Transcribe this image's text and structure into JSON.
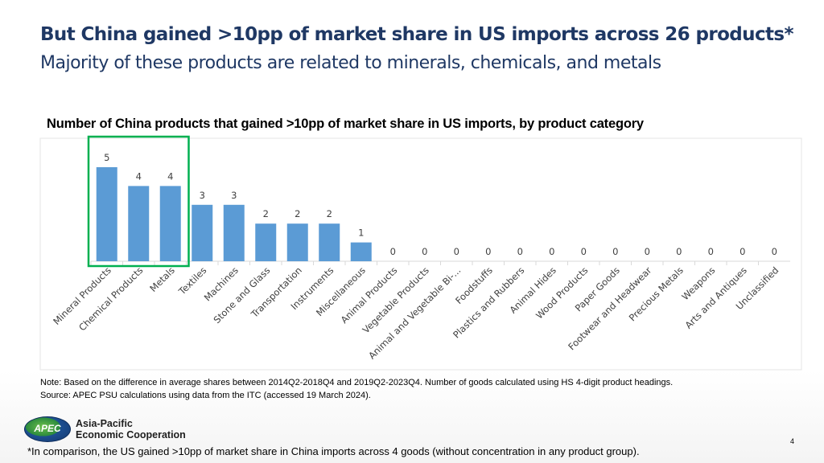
{
  "title": "But China gained >10pp of market share in US imports across 26 products*",
  "subtitle": "Majority of these products are related to minerals, chemicals, and metals",
  "chart_data": {
    "type": "bar",
    "title": "Number of China products that gained >10pp of market share in US imports, by product category",
    "categories": [
      "Mineral Products",
      "Chemical Products",
      "Metals",
      "Textiles",
      "Machines",
      "Stone and Glass",
      "Transportation",
      "Instruments",
      "Miscellaneous",
      "Animal Products",
      "Vegetable Products",
      "Animal and Vegetable Bi-...",
      "Foodstuffs",
      "Plastics and Rubbers",
      "Animal Hides",
      "Wood Products",
      "Paper Goods",
      "Footwear and Headwear",
      "Precious Metals",
      "Weapons",
      "Arts and Antiques",
      "Unclassified"
    ],
    "values": [
      5,
      4,
      4,
      3,
      3,
      2,
      2,
      2,
      1,
      0,
      0,
      0,
      0,
      0,
      0,
      0,
      0,
      0,
      0,
      0,
      0,
      0
    ],
    "data_labels": [
      "5",
      "4",
      "4",
      "3",
      "3",
      "2",
      "2",
      "2",
      "1",
      "0",
      "0",
      "0",
      "0",
      "0",
      "0",
      "0",
      "0",
      "0",
      "0",
      "0",
      "0",
      "0"
    ],
    "ylim": [
      0,
      5
    ],
    "grid": false,
    "bar_color": "#5b9bd5",
    "highlight_color": "#00b050",
    "highlight_count": 3
  },
  "note_line1": "Note: Based on the difference in average shares between 2014Q2-2018Q4 and 2019Q2-2023Q4. Number of goods calculated using HS 4-digit product headings.",
  "note_line2": "Source: APEC PSU calculations using data from the ITC (accessed 19 March 2024).",
  "logo": {
    "emblem": "APEC",
    "line1": "Asia-Pacific",
    "line2": "Economic Cooperation"
  },
  "page_number": "4",
  "footnote": "*In comparison, the US gained >10pp of market share in China imports across 4 goods (without concentration in any product group)."
}
